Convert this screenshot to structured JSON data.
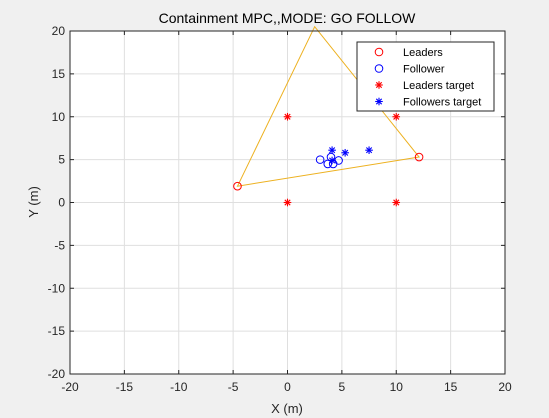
{
  "figure": {
    "background": "#f0f0f0"
  },
  "chart_data": {
    "type": "scatter",
    "title": "Containment MPC,,MODE: GO FOLLOW",
    "xlabel": "X (m)",
    "ylabel": "Y (m)",
    "xlim": [
      -20,
      20
    ],
    "ylim": [
      -20,
      20
    ],
    "xticks": [
      -20,
      -15,
      -10,
      -5,
      0,
      5,
      10,
      15,
      20
    ],
    "yticks": [
      -20,
      -15,
      -10,
      -5,
      0,
      5,
      10,
      15,
      20
    ],
    "grid": true,
    "legend_position": "top-right",
    "hull": {
      "color": "#edb120",
      "points": [
        [
          -4.6,
          1.9
        ],
        [
          2.5,
          20.5
        ],
        [
          12.1,
          5.3
        ]
      ]
    },
    "series": [
      {
        "name": "Leaders",
        "marker": "circle",
        "color": "#ff0000",
        "x": [
          -4.6,
          12.1
        ],
        "y": [
          1.9,
          5.3
        ]
      },
      {
        "name": "Follower",
        "marker": "circle",
        "color": "#0000ff",
        "x": [
          3.0,
          3.7,
          4.2,
          4.7,
          4.0
        ],
        "y": [
          5.0,
          4.5,
          4.5,
          4.9,
          5.3
        ]
      },
      {
        "name": "Leaders target",
        "marker": "asterisk",
        "color": "#ff0000",
        "x": [
          0,
          10,
          0,
          10
        ],
        "y": [
          10,
          10,
          0,
          0
        ]
      },
      {
        "name": "Followers target",
        "marker": "asterisk",
        "color": "#0000ff",
        "x": [
          4.1,
          5.3,
          7.5,
          4.1
        ],
        "y": [
          6.1,
          5.8,
          6.1,
          4.9
        ]
      }
    ]
  }
}
